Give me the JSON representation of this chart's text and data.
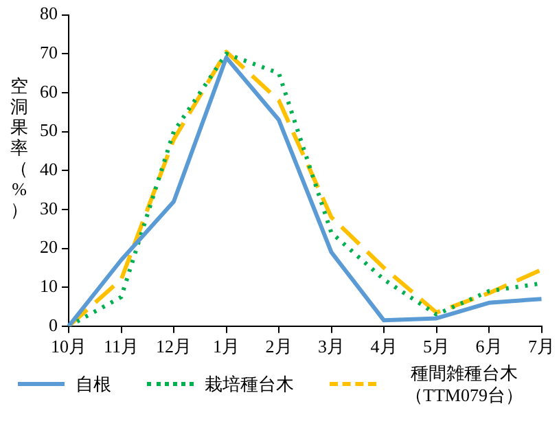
{
  "chart_data": {
    "type": "line",
    "ylabel": "空洞果率（%）",
    "categories": [
      "10月",
      "11月",
      "12月",
      "1月",
      "2月",
      "3月",
      "4月",
      "5月",
      "6月",
      "7月"
    ],
    "series": [
      {
        "name": "自根",
        "color": "#5b9bd5",
        "line_style": "solid",
        "values": [
          0,
          17,
          32,
          69,
          53,
          19,
          1.5,
          2,
          6,
          7
        ]
      },
      {
        "name": "栽培種台木",
        "color": "#00b050",
        "line_style": "dotted",
        "values": [
          0,
          7.5,
          50,
          70,
          65,
          24,
          12,
          3,
          9,
          11
        ]
      },
      {
        "name": "種間雑種台木（TTM079台）",
        "color": "#ffc000",
        "line_style": "dashed",
        "values": [
          0,
          12,
          48,
          70.5,
          58,
          28,
          15,
          3.5,
          8.5,
          14.5
        ]
      }
    ],
    "ylim": [
      0,
      80
    ],
    "yticks": [
      0,
      10,
      20,
      30,
      40,
      50,
      60,
      70,
      80
    ],
    "grid": false,
    "legend": "bottom",
    "marker": "none"
  }
}
